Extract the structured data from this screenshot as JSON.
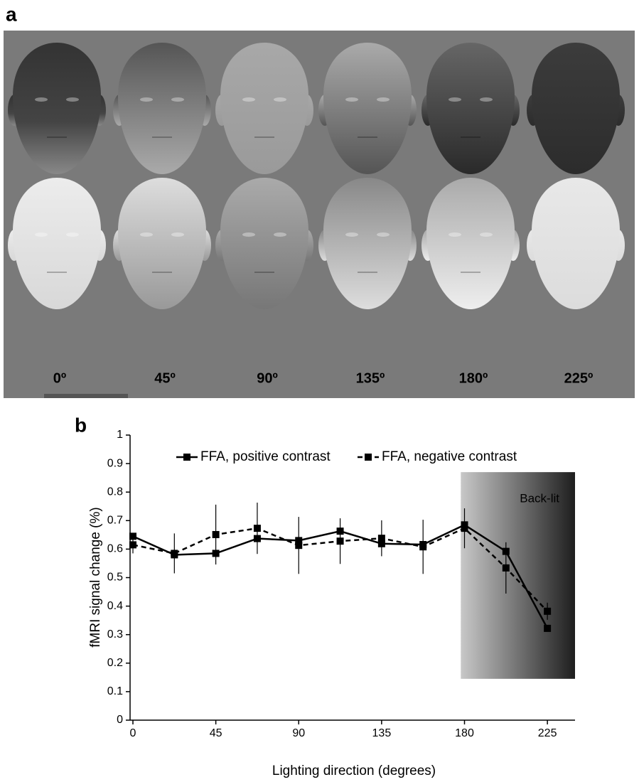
{
  "panel_a": {
    "label": "a",
    "angle_labels": [
      "0º",
      "45º",
      "90º",
      "135º",
      "180º",
      "225º"
    ]
  },
  "chart_data": {
    "type": "line",
    "panel_label": "b",
    "x_label": "Lighting direction (degrees)",
    "y_label": "fMRI signal change (%)",
    "x": [
      0,
      22.5,
      45,
      67.5,
      90,
      112.5,
      135,
      157.5,
      180,
      202.5,
      225
    ],
    "series": [
      {
        "name": "FFA, positive contrast",
        "color": "#000000",
        "dash": false,
        "values": [
          0.645,
          0.58,
          0.585,
          0.637,
          0.63,
          0.663,
          0.619,
          0.616,
          0.685,
          0.592,
          0.322
        ]
      },
      {
        "name": "FFA, negative contrast",
        "color": "#000000",
        "dash": true,
        "values": [
          0.615,
          0.585,
          0.651,
          0.673,
          0.613,
          0.628,
          0.638,
          0.608,
          0.673,
          0.534,
          0.382
        ],
        "errors": [
          0.03,
          0.07,
          0.105,
          0.09,
          0.1,
          0.08,
          0.063,
          0.095,
          0.07,
          0.09,
          0.03
        ]
      }
    ],
    "shaded_region": {
      "x": [
        178,
        240
      ],
      "y": [
        0.145,
        0.87
      ],
      "label": "Back-lit"
    },
    "xlim": [
      0,
      240
    ],
    "ylim": [
      0,
      1
    ],
    "xticks": [
      0,
      45,
      90,
      135,
      180,
      225
    ],
    "yticks": [
      0,
      0.1,
      0.2,
      0.3,
      0.4,
      0.5,
      0.6,
      0.7,
      0.8,
      0.9,
      1
    ],
    "legend": "top"
  }
}
